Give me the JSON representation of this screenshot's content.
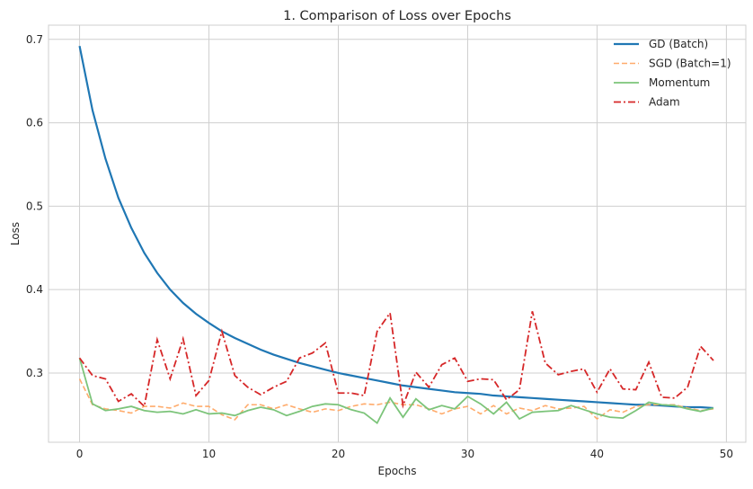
{
  "chart_data": {
    "type": "line",
    "title": "1. Comparison of Loss over Epochs",
    "xlabel": "Epochs",
    "ylabel": "Loss",
    "xlim": [
      -2.4,
      51.5
    ],
    "ylim": [
      0.217,
      0.717
    ],
    "xticks": [
      0,
      10,
      20,
      30,
      40,
      50
    ],
    "yticks": [
      0.3,
      0.4,
      0.5,
      0.6,
      0.7
    ],
    "grid": true,
    "legend_position": "top-right",
    "series": [
      {
        "name": "GD (Batch)",
        "color": "#1f77b4",
        "dash": "solid",
        "values": [
          0.692,
          0.615,
          0.557,
          0.51,
          0.474,
          0.444,
          0.42,
          0.4,
          0.384,
          0.371,
          0.36,
          0.35,
          0.342,
          0.335,
          0.328,
          0.322,
          0.317,
          0.312,
          0.308,
          0.304,
          0.3,
          0.297,
          0.294,
          0.291,
          0.288,
          0.285,
          0.283,
          0.281,
          0.279,
          0.277,
          0.276,
          0.275,
          0.273,
          0.272,
          0.271,
          0.27,
          0.269,
          0.268,
          0.267,
          0.266,
          0.265,
          0.264,
          0.263,
          0.262,
          0.262,
          0.261,
          0.26,
          0.259,
          0.259,
          0.258
        ]
      },
      {
        "name": "SGD (Batch=1)",
        "color": "#ffab6b",
        "dash": "dashed",
        "values": [
          0.293,
          0.262,
          0.257,
          0.255,
          0.252,
          0.26,
          0.26,
          0.258,
          0.264,
          0.26,
          0.26,
          0.25,
          0.244,
          0.262,
          0.262,
          0.257,
          0.262,
          0.257,
          0.253,
          0.257,
          0.255,
          0.26,
          0.263,
          0.262,
          0.265,
          0.262,
          0.262,
          0.257,
          0.251,
          0.257,
          0.26,
          0.251,
          0.261,
          0.251,
          0.258,
          0.255,
          0.261,
          0.257,
          0.258,
          0.26,
          0.245,
          0.256,
          0.253,
          0.26,
          0.262,
          0.262,
          0.262,
          0.258,
          0.255,
          0.257
        ]
      },
      {
        "name": "Momentum",
        "color": "#7cc47a",
        "dash": "solid",
        "values": [
          0.318,
          0.263,
          0.255,
          0.257,
          0.26,
          0.255,
          0.253,
          0.254,
          0.251,
          0.256,
          0.251,
          0.252,
          0.249,
          0.255,
          0.259,
          0.256,
          0.249,
          0.254,
          0.26,
          0.263,
          0.262,
          0.256,
          0.252,
          0.24,
          0.27,
          0.247,
          0.269,
          0.256,
          0.261,
          0.257,
          0.272,
          0.263,
          0.251,
          0.265,
          0.245,
          0.253,
          0.254,
          0.255,
          0.261,
          0.256,
          0.251,
          0.247,
          0.246,
          0.255,
          0.265,
          0.262,
          0.261,
          0.257,
          0.254,
          0.258
        ]
      },
      {
        "name": "Adam",
        "color": "#d62728",
        "dash": "dashdot",
        "values": [
          0.318,
          0.297,
          0.293,
          0.266,
          0.275,
          0.26,
          0.34,
          0.293,
          0.341,
          0.273,
          0.291,
          0.35,
          0.297,
          0.283,
          0.274,
          0.283,
          0.29,
          0.318,
          0.324,
          0.336,
          0.276,
          0.276,
          0.273,
          0.35,
          0.372,
          0.261,
          0.301,
          0.283,
          0.31,
          0.318,
          0.29,
          0.293,
          0.292,
          0.268,
          0.28,
          0.374,
          0.312,
          0.298,
          0.302,
          0.305,
          0.277,
          0.305,
          0.281,
          0.28,
          0.313,
          0.271,
          0.27,
          0.283,
          0.332,
          0.315
        ]
      }
    ]
  }
}
